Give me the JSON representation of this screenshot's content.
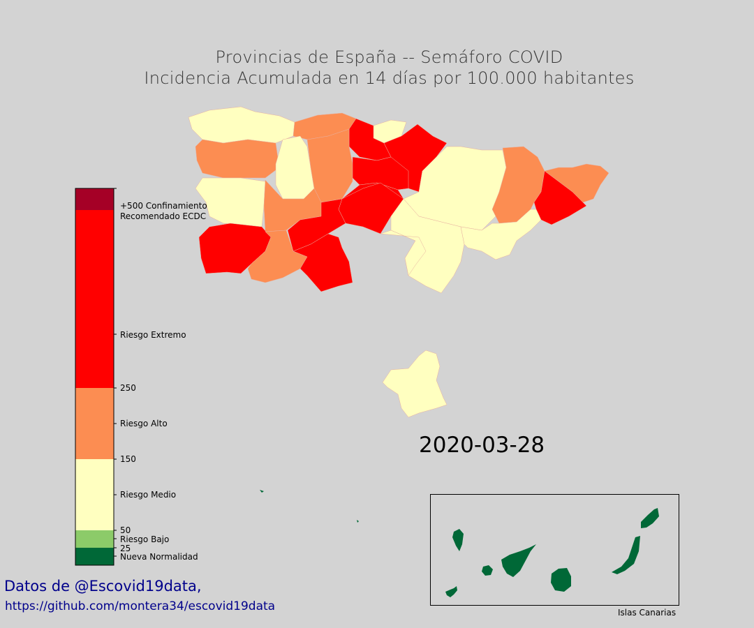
{
  "title": {
    "line1": "Provincias de España -- Semáforo COVID",
    "line2": "Incidencia Acumulada en 14 días por 100.000 habitantes"
  },
  "date": "2020-03-28",
  "credits": {
    "line1": "Datos de @Escovid19data,",
    "line2": "https://github.com/montera34/escovid19data"
  },
  "inset_label": "Islas Canarias",
  "colorbar": {
    "ticks": [
      "+500 Confinamiento",
      "Recomendado ECDC",
      "Riesgo Extremo",
      "250",
      "Riesgo Alto",
      "150",
      "Riesgo Medio",
      "50",
      "Riesgo Bajo",
      "25",
      "Nueva Normalidad"
    ],
    "levels": [
      {
        "name": "Nueva Normalidad",
        "color": "#006837"
      },
      {
        "name": "Riesgo Bajo",
        "color": "#8ccb69"
      },
      {
        "name": "Riesgo Medio",
        "color": "#ffffc0"
      },
      {
        "name": "Riesgo Alto",
        "color": "#fc8d52"
      },
      {
        "name": "Riesgo Extremo",
        "color": "#ff0000"
      },
      {
        "name": "+500 Confinamiento",
        "color": "#a50026"
      }
    ]
  },
  "regions": [
    {
      "name": "galicia-norte",
      "level": "Riesgo Medio"
    },
    {
      "name": "galicia-sur",
      "level": "Riesgo Alto"
    },
    {
      "name": "asturias",
      "level": "Riesgo Alto"
    },
    {
      "name": "cantabria",
      "level": "Riesgo Medio"
    },
    {
      "name": "pais-vasco",
      "level": "Riesgo Extremo"
    },
    {
      "name": "navarra",
      "level": "Riesgo Extremo"
    },
    {
      "name": "leon",
      "level": "Riesgo Medio"
    },
    {
      "name": "burgos",
      "level": "Riesgo Alto"
    },
    {
      "name": "la-rioja",
      "level": "Riesgo Extremo"
    },
    {
      "name": "soria",
      "level": "Riesgo Extremo"
    },
    {
      "name": "aragon",
      "level": "Riesgo Medio"
    },
    {
      "name": "lleida",
      "level": "Riesgo Alto"
    },
    {
      "name": "girona",
      "level": "Riesgo Alto"
    },
    {
      "name": "barcelona",
      "level": "Riesgo Extremo"
    },
    {
      "name": "salamanca",
      "level": "Riesgo Medio"
    },
    {
      "name": "avila",
      "level": "Riesgo Alto"
    },
    {
      "name": "madrid",
      "level": "Riesgo Extremo"
    },
    {
      "name": "guadalajara",
      "level": "Riesgo Extremo"
    },
    {
      "name": "caceres",
      "level": "Riesgo Extremo"
    },
    {
      "name": "toledo",
      "level": "Riesgo Alto"
    },
    {
      "name": "ciudad-real",
      "level": "Riesgo Extremo"
    },
    {
      "name": "cuenca",
      "level": "Riesgo Medio"
    },
    {
      "name": "valencia",
      "level": "Riesgo Medio"
    },
    {
      "name": "tarragona",
      "level": "Riesgo Medio"
    },
    {
      "name": "murcia",
      "level": "Riesgo Medio"
    },
    {
      "name": "canarias",
      "level": "Nueva Normalidad"
    }
  ]
}
